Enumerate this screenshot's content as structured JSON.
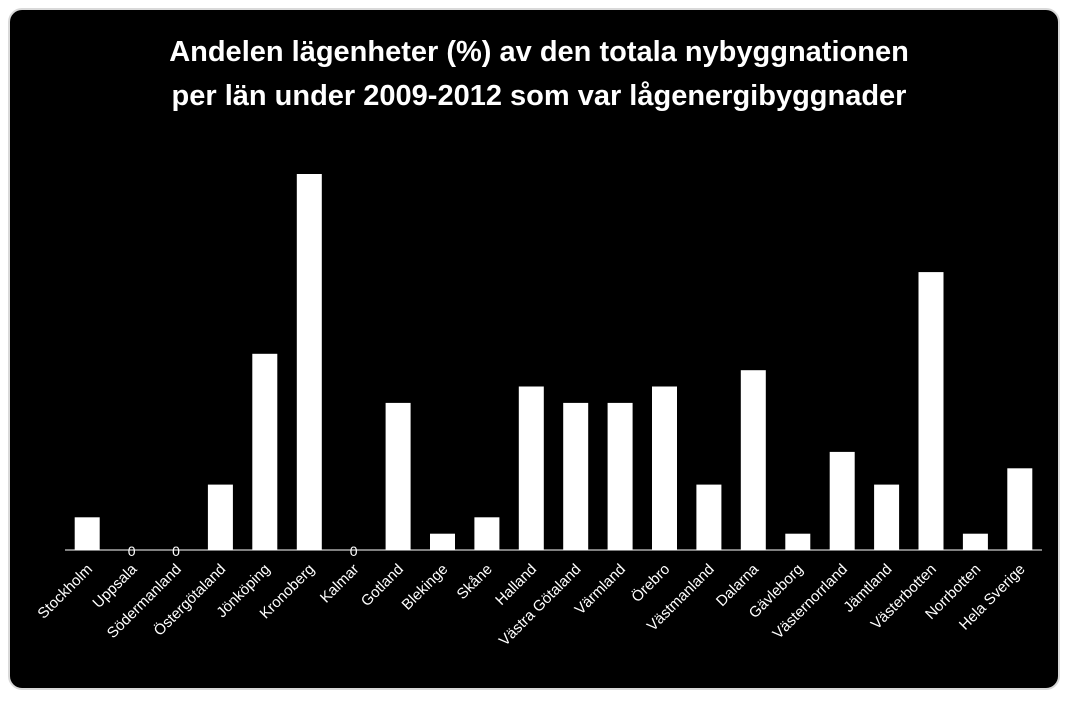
{
  "chart_data": {
    "type": "bar",
    "title_lines": [
      "Andelen lägenheter (%) av den totala nybyggnationen",
      "per län under 2009-2012 som var lågenergibyggnader"
    ],
    "categories": [
      "Stockholm",
      "Uppsala",
      "Södermanland",
      "Östergötaland",
      "Jönköping",
      "Kronoberg",
      "Kalmar",
      "Gotland",
      "Blekinge",
      "Skåne",
      "Halland",
      "Västra Götaland",
      "Värmland",
      "Örebro",
      "Västmanland",
      "Dalarna",
      "Gävleborg",
      "Västernorrland",
      "Jämtland",
      "Västerbotten",
      "Norrbotten",
      "Hela Sverige"
    ],
    "values": [
      2,
      0,
      0,
      4,
      12,
      23,
      0,
      9,
      1,
      2,
      10,
      9,
      9,
      10,
      4,
      11,
      1,
      6,
      4,
      17,
      1,
      5
    ],
    "zero_label": "0",
    "ylim": [
      0,
      23
    ],
    "bar_color": "#ffffff",
    "background": "#000000",
    "grid": false,
    "legend": "none"
  }
}
